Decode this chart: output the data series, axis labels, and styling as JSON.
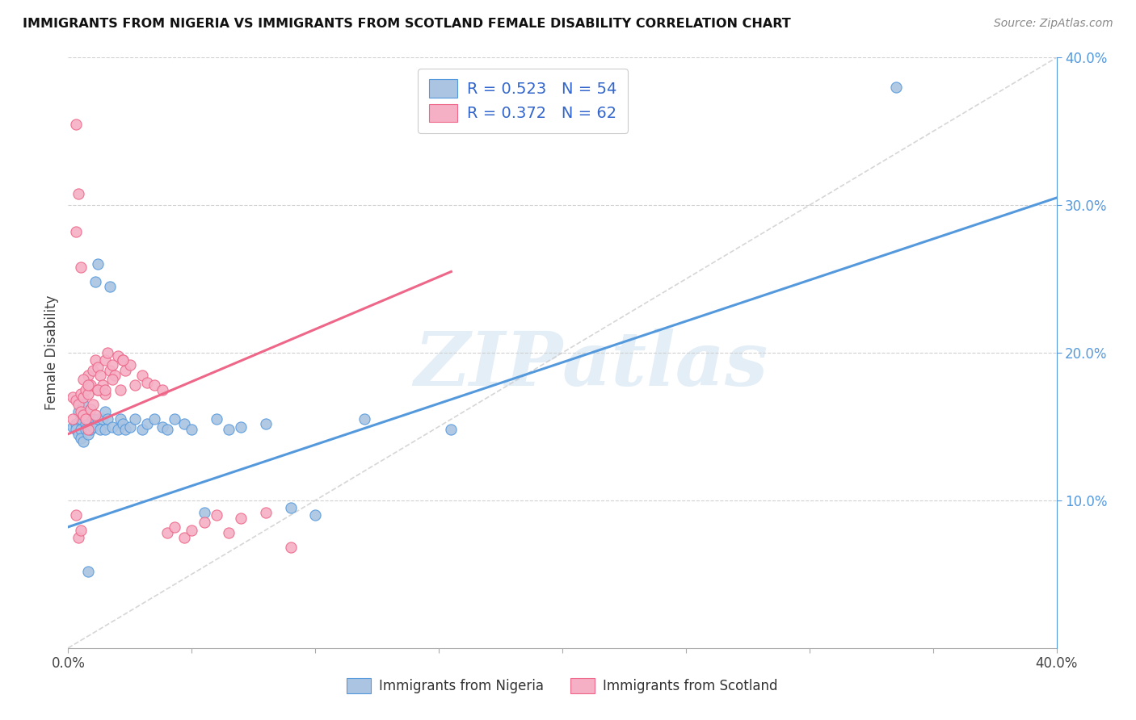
{
  "title": "IMMIGRANTS FROM NIGERIA VS IMMIGRANTS FROM SCOTLAND FEMALE DISABILITY CORRELATION CHART",
  "source": "Source: ZipAtlas.com",
  "ylabel": "Female Disability",
  "xlim": [
    0.0,
    0.4
  ],
  "ylim": [
    0.0,
    0.4
  ],
  "legend_r1": "R = 0.523",
  "legend_n1": "N = 54",
  "legend_r2": "R = 0.372",
  "legend_n2": "N = 62",
  "color_nigeria": "#aac4e2",
  "color_scotland": "#f5b0c5",
  "line_color_nigeria": "#5599dd",
  "line_color_scotland": "#ee6688",
  "diagonal_color": "#cccccc",
  "right_tick_color": "#5599dd",
  "watermark_color": "#cce0f0",
  "nigeria_line_x0": 0.0,
  "nigeria_line_y0": 0.082,
  "nigeria_line_x1": 0.4,
  "nigeria_line_y1": 0.305,
  "scotland_line_x0": 0.0,
  "scotland_line_y0": 0.145,
  "scotland_line_x1": 0.155,
  "scotland_line_y1": 0.255,
  "nigeria_x": [
    0.002,
    0.003,
    0.003,
    0.004,
    0.004,
    0.005,
    0.005,
    0.005,
    0.006,
    0.006,
    0.006,
    0.007,
    0.007,
    0.008,
    0.008,
    0.009,
    0.009,
    0.01,
    0.01,
    0.011,
    0.012,
    0.012,
    0.013,
    0.014,
    0.015,
    0.015,
    0.016,
    0.017,
    0.018,
    0.02,
    0.021,
    0.022,
    0.023,
    0.025,
    0.027,
    0.03,
    0.032,
    0.035,
    0.038,
    0.04,
    0.043,
    0.047,
    0.05,
    0.055,
    0.06,
    0.065,
    0.07,
    0.08,
    0.09,
    0.1,
    0.12,
    0.155,
    0.008,
    0.335
  ],
  "nigeria_y": [
    0.15,
    0.152,
    0.148,
    0.16,
    0.145,
    0.155,
    0.148,
    0.142,
    0.158,
    0.165,
    0.14,
    0.152,
    0.148,
    0.155,
    0.145,
    0.162,
    0.148,
    0.155,
    0.15,
    0.248,
    0.26,
    0.155,
    0.148,
    0.155,
    0.16,
    0.148,
    0.155,
    0.245,
    0.15,
    0.148,
    0.155,
    0.152,
    0.148,
    0.15,
    0.155,
    0.148,
    0.152,
    0.155,
    0.15,
    0.148,
    0.155,
    0.152,
    0.148,
    0.092,
    0.155,
    0.148,
    0.15,
    0.152,
    0.095,
    0.09,
    0.155,
    0.148,
    0.052,
    0.38
  ],
  "scotland_x": [
    0.002,
    0.002,
    0.003,
    0.003,
    0.004,
    0.004,
    0.005,
    0.005,
    0.005,
    0.006,
    0.006,
    0.007,
    0.007,
    0.008,
    0.008,
    0.008,
    0.009,
    0.009,
    0.01,
    0.01,
    0.011,
    0.011,
    0.012,
    0.012,
    0.013,
    0.014,
    0.015,
    0.015,
    0.016,
    0.017,
    0.018,
    0.019,
    0.02,
    0.021,
    0.022,
    0.023,
    0.025,
    0.027,
    0.03,
    0.032,
    0.035,
    0.038,
    0.04,
    0.043,
    0.047,
    0.05,
    0.055,
    0.06,
    0.065,
    0.07,
    0.08,
    0.09,
    0.003,
    0.004,
    0.006,
    0.008,
    0.012,
    0.015,
    0.018,
    0.022,
    0.003,
    0.005
  ],
  "scotland_y": [
    0.17,
    0.155,
    0.168,
    0.09,
    0.165,
    0.075,
    0.172,
    0.16,
    0.08,
    0.17,
    0.158,
    0.175,
    0.155,
    0.185,
    0.172,
    0.148,
    0.178,
    0.162,
    0.188,
    0.165,
    0.195,
    0.158,
    0.19,
    0.175,
    0.185,
    0.178,
    0.195,
    0.172,
    0.2,
    0.188,
    0.192,
    0.185,
    0.198,
    0.175,
    0.195,
    0.188,
    0.192,
    0.178,
    0.185,
    0.18,
    0.178,
    0.175,
    0.078,
    0.082,
    0.075,
    0.08,
    0.085,
    0.09,
    0.078,
    0.088,
    0.092,
    0.068,
    0.282,
    0.308,
    0.182,
    0.178,
    0.175,
    0.175,
    0.182,
    0.195,
    0.355,
    0.258
  ]
}
